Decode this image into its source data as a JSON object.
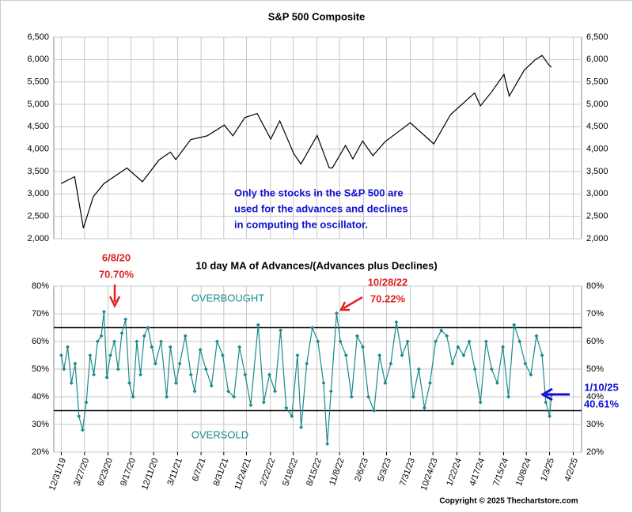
{
  "chart_data": [
    {
      "type": "line",
      "title": "S&P 500 Composite",
      "xlim": [
        "12/3/19",
        "5/3/25"
      ],
      "ylim": [
        2000,
        6500
      ],
      "yticks": [
        {
          "value": 2000,
          "label": "2,000"
        },
        {
          "value": 2500,
          "label": "2,500"
        },
        {
          "value": 3000,
          "label": "3,000"
        },
        {
          "value": 3500,
          "label": "3,500"
        },
        {
          "value": 4000,
          "label": "4,000"
        },
        {
          "value": 4500,
          "label": "4,500"
        },
        {
          "value": 5000,
          "label": "5,000"
        },
        {
          "value": 5500,
          "label": "5,500"
        },
        {
          "value": 6000,
          "label": "6,000"
        },
        {
          "value": 6500,
          "label": "6,500"
        }
      ],
      "grid": true,
      "annotation": [
        "Only the stocks in the S&P 500 are",
        "used for the advances and declines",
        "in computing the oscillator."
      ],
      "series": [
        {
          "name": "S&P 500",
          "color": "#000000",
          "x": [
            "12/31/19",
            "2/19/20",
            "3/23/20",
            "4/29/20",
            "6/8/20",
            "9/2/20",
            "10/30/20",
            "12/31/20",
            "2/12/21",
            "3/4/21",
            "4/29/21",
            "6/30/21",
            "9/2/21",
            "10/4/21",
            "11/18/21",
            "1/3/22",
            "2/23/22",
            "3/29/22",
            "5/20/22",
            "6/16/22",
            "8/16/22",
            "9/30/22",
            "10/12/22",
            "11/30/22",
            "12/28/22",
            "2/2/23",
            "3/13/23",
            "4/28/23",
            "6/30/23",
            "7/31/23",
            "10/27/23",
            "12/29/23",
            "3/28/24",
            "4/19/24",
            "5/31/24",
            "7/16/24",
            "8/5/24",
            "9/30/24",
            "11/11/24",
            "12/6/24",
            "12/31/24",
            "1/10/25"
          ],
          "values": [
            3231,
            3386,
            2237,
            2939,
            3232,
            3580,
            3270,
            3756,
            3934,
            3768,
            4211,
            4297,
            4537,
            4300,
            4704,
            4796,
            4225,
            4631,
            3901,
            3666,
            4305,
            3585,
            3577,
            4080,
            3783,
            4179,
            3855,
            4169,
            4450,
            4589,
            4117,
            4770,
            5254,
            4967,
            5278,
            5667,
            5186,
            5762,
            6001,
            6090,
            5882,
            5827
          ]
        }
      ]
    },
    {
      "type": "line",
      "title": "10 day MA of Advances/(Advances plus Declines)",
      "xlim": [
        "12/3/19",
        "5/3/25"
      ],
      "xticks": [
        "12/31/19",
        "3/27/20",
        "6/23/20",
        "9/17/20",
        "12/11/20",
        "3/11/21",
        "6/7/21",
        "8/31/21",
        "11/24/21",
        "2/22/22",
        "5/18/22",
        "8/15/22",
        "11/8/22",
        "2/6/23",
        "5/3/23",
        "7/31/23",
        "10/24/23",
        "1/22/24",
        "4/17/24",
        "7/15/24",
        "10/8/24",
        "1/3/25",
        "4/2/25"
      ],
      "ylim": [
        20,
        80
      ],
      "yticks": [
        {
          "value": 20,
          "label": "20%"
        },
        {
          "value": 30,
          "label": "30%"
        },
        {
          "value": 40,
          "label": "40%"
        },
        {
          "value": 50,
          "label": "50%"
        },
        {
          "value": 60,
          "label": "60%"
        },
        {
          "value": 70,
          "label": "70%"
        },
        {
          "value": 80,
          "label": "80%"
        }
      ],
      "grid": true,
      "overbought_level": 65,
      "oversold_level": 35,
      "overbought_label": "OVERBOUGHT",
      "oversold_label": "OVERSOLD",
      "annotations": [
        [
          "6/8/20",
          "70.70%"
        ],
        [
          "10/28/22",
          "70.22%"
        ],
        [
          "1/10/25",
          "40.61%"
        ]
      ],
      "series": [
        {
          "name": "Advances/(Advances plus Declines)",
          "color": "#1a8a8a",
          "marker": "diamond",
          "x": [
            "12/31/19",
            "1/10/20",
            "1/24/20",
            "2/7/20",
            "2/21/20",
            "3/6/20",
            "3/20/20",
            "4/3/20",
            "4/17/20",
            "5/1/20",
            "5/15/20",
            "5/29/20",
            "6/8/20",
            "6/19/20",
            "7/2/20",
            "7/17/20",
            "7/31/20",
            "8/14/20",
            "8/28/20",
            "9/11/20",
            "9/25/20",
            "10/9/20",
            "10/23/20",
            "11/6/20",
            "11/20/20",
            "12/4/20",
            "12/18/20",
            "1/8/21",
            "1/29/21",
            "2/12/21",
            "3/5/21",
            "3/19/21",
            "4/9/21",
            "4/30/21",
            "5/14/21",
            "6/4/21",
            "6/25/21",
            "7/16/21",
            "8/6/21",
            "8/27/21",
            "9/17/21",
            "10/8/21",
            "10/29/21",
            "11/19/21",
            "12/10/21",
            "1/7/22",
            "1/28/22",
            "2/18/22",
            "3/11/22",
            "4/1/22",
            "4/22/22",
            "5/13/22",
            "6/3/22",
            "6/17/22",
            "7/8/22",
            "7/29/22",
            "8/19/22",
            "9/9/22",
            "9/23/22",
            "10/7/22",
            "10/28/22",
            "11/11/22",
            "12/2/22",
            "12/23/22",
            "1/13/23",
            "2/3/23",
            "2/24/23",
            "3/17/23",
            "4/7/23",
            "4/28/23",
            "5/19/23",
            "6/9/23",
            "6/30/23",
            "7/21/23",
            "8/11/23",
            "9/1/23",
            "9/22/23",
            "10/13/23",
            "11/3/23",
            "11/24/23",
            "12/15/23",
            "1/5/24",
            "1/26/24",
            "2/16/24",
            "3/8/24",
            "3/29/24",
            "4/19/24",
            "5/10/24",
            "5/31/24",
            "6/21/24",
            "7/12/24",
            "8/2/24",
            "8/23/24",
            "9/13/24",
            "10/4/24",
            "10/25/24",
            "11/15/24",
            "12/6/24",
            "12/20/24",
            "1/3/25",
            "1/10/25"
          ],
          "values": [
            55,
            50,
            58,
            45,
            52,
            33,
            28,
            38,
            55,
            48,
            60,
            62,
            70.7,
            47,
            55,
            60,
            50,
            63,
            68,
            45,
            40,
            60,
            48,
            62,
            65,
            58,
            52,
            60,
            40,
            58,
            45,
            52,
            62,
            48,
            42,
            57,
            50,
            44,
            60,
            55,
            42,
            40,
            58,
            48,
            37,
            66,
            38,
            48,
            42,
            64,
            36,
            33,
            55,
            29,
            52,
            65,
            60,
            45,
            23,
            42,
            70.22,
            60,
            55,
            40,
            62,
            58,
            40,
            35,
            55,
            45,
            52,
            67,
            55,
            60,
            40,
            50,
            36,
            45,
            60,
            64,
            62,
            52,
            58,
            55,
            60,
            50,
            38,
            60,
            50,
            45,
            58,
            40,
            66,
            60,
            52,
            48,
            62,
            55,
            38,
            33,
            40.61
          ]
        }
      ]
    }
  ],
  "copyright": "Copyright © 2025 Thechartstore.com"
}
